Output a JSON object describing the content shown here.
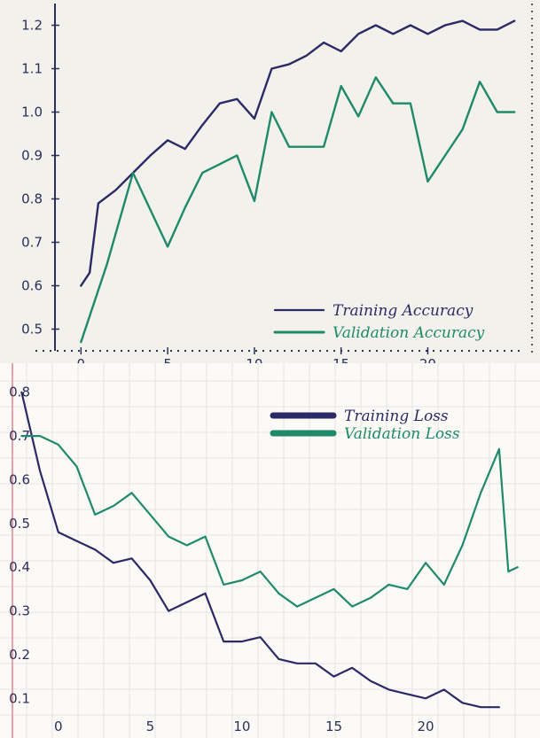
{
  "chart_data": [
    {
      "type": "line",
      "title": "",
      "xlabel": "",
      "ylabel": "",
      "xlim": [
        -1.5,
        25.5
      ],
      "ylim": [
        0.45,
        1.25
      ],
      "xticks": [
        {
          "value": 0,
          "label": "0"
        },
        {
          "value": 5,
          "label": "5"
        },
        {
          "value": 10,
          "label": "10"
        },
        {
          "value": 15,
          "label": "15"
        },
        {
          "value": 20,
          "label": "20"
        }
      ],
      "yticks": [
        {
          "value": 0.5,
          "label": "0.5"
        },
        {
          "value": 0.6,
          "label": "0.6"
        },
        {
          "value": 0.7,
          "label": "0.7"
        },
        {
          "value": 0.8,
          "label": "0.8"
        },
        {
          "value": 0.9,
          "label": "0.9"
        },
        {
          "value": 1.0,
          "label": "1.0"
        },
        {
          "value": 1.1,
          "label": "1.1"
        },
        {
          "value": 1.2,
          "label": "1.2"
        }
      ],
      "grid": false,
      "legend_position": "bottom-right",
      "series": [
        {
          "name": "Training Accuracy",
          "color": "#2b2a66",
          "x": [
            0,
            0.5,
            1,
            2,
            3,
            4,
            5,
            6,
            7,
            8,
            9,
            10,
            11,
            12,
            13,
            14,
            15,
            16,
            17,
            18,
            19,
            20,
            21,
            22,
            23,
            24,
            25
          ],
          "y": [
            0.6,
            0.63,
            0.79,
            0.82,
            0.86,
            0.9,
            0.935,
            0.915,
            0.97,
            1.02,
            1.03,
            0.985,
            1.1,
            1.11,
            1.13,
            1.16,
            1.14,
            1.18,
            1.2,
            1.18,
            1.2,
            1.18,
            1.2,
            1.21,
            1.19,
            1.19,
            1.21
          ]
        },
        {
          "name": "Validation Accuracy",
          "color": "#1f8a6a",
          "x": [
            0,
            1.5,
            3,
            5,
            6,
            7,
            8,
            9,
            10,
            11,
            12,
            13,
            14,
            15,
            16,
            17,
            18,
            19,
            20,
            21,
            22,
            23,
            24,
            25
          ],
          "y": [
            0.47,
            0.65,
            0.86,
            0.69,
            0.78,
            0.86,
            0.88,
            0.9,
            0.795,
            1.0,
            0.92,
            0.92,
            0.92,
            1.06,
            0.99,
            1.08,
            1.02,
            1.02,
            0.84,
            0.9,
            0.96,
            1.07,
            1.0,
            1.0
          ]
        }
      ]
    },
    {
      "type": "line",
      "title": "",
      "xlabel": "",
      "ylabel": "",
      "xlim": [
        -2.5,
        25.5
      ],
      "ylim": [
        0.05,
        0.85
      ],
      "xticks": [
        {
          "value": 0,
          "label": "0"
        },
        {
          "value": 5,
          "label": "5"
        },
        {
          "value": 10,
          "label": "10"
        },
        {
          "value": 15,
          "label": "15"
        },
        {
          "value": 20,
          "label": "20"
        }
      ],
      "yticks": [
        {
          "value": 0.1,
          "label": "0.1"
        },
        {
          "value": 0.2,
          "label": "0.2"
        },
        {
          "value": 0.3,
          "label": "0.3"
        },
        {
          "value": 0.4,
          "label": "0.4"
        },
        {
          "value": 0.5,
          "label": "0.5"
        },
        {
          "value": 0.6,
          "label": "0.6"
        },
        {
          "value": 0.7,
          "label": "0.7"
        },
        {
          "value": 0.8,
          "label": "0.8"
        }
      ],
      "grid": true,
      "legend_position": "top-right",
      "series": [
        {
          "name": "Training Loss",
          "color": "#2b2a66",
          "x": [
            -2,
            -1,
            0,
            1,
            2,
            3,
            4,
            5,
            6,
            7,
            8,
            9,
            10,
            11,
            12,
            13,
            14,
            15,
            16,
            17,
            18,
            19,
            20,
            21,
            22,
            23,
            24
          ],
          "y": [
            0.8,
            0.62,
            0.48,
            0.46,
            0.44,
            0.41,
            0.42,
            0.37,
            0.3,
            0.32,
            0.34,
            0.23,
            0.23,
            0.24,
            0.19,
            0.18,
            0.18,
            0.15,
            0.17,
            0.14,
            0.12,
            0.11,
            0.1,
            0.12,
            0.09,
            0.08,
            0.08
          ]
        },
        {
          "name": "Validation Loss",
          "color": "#1f8a6a",
          "x": [
            -2,
            -1,
            0,
            1,
            2,
            3,
            4,
            5,
            6,
            7,
            8,
            9,
            10,
            11,
            12,
            13,
            14,
            15,
            16,
            17,
            18,
            19,
            20,
            21,
            22,
            23,
            24,
            24.5,
            25
          ],
          "y": [
            0.7,
            0.7,
            0.68,
            0.63,
            0.52,
            0.54,
            0.57,
            0.52,
            0.47,
            0.45,
            0.47,
            0.36,
            0.37,
            0.39,
            0.34,
            0.31,
            0.33,
            0.35,
            0.31,
            0.33,
            0.36,
            0.35,
            0.41,
            0.36,
            0.45,
            0.57,
            0.67,
            0.39,
            0.4
          ]
        }
      ]
    }
  ]
}
